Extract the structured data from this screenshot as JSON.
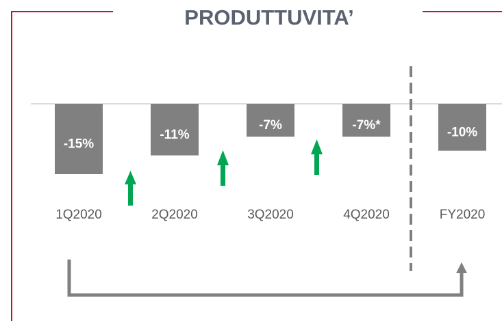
{
  "chart_data": {
    "type": "bar",
    "title": "PRODUTTUVITA’",
    "categories": [
      "1Q2020",
      "2Q2020",
      "3Q2020",
      "4Q2020",
      "FY2020"
    ],
    "values": [
      -15,
      -11,
      -7,
      -7,
      -10
    ],
    "value_labels": [
      "-15%",
      "-11%",
      "-7%",
      "-7%*",
      "-10%"
    ],
    "color": "#808080"
  }
}
